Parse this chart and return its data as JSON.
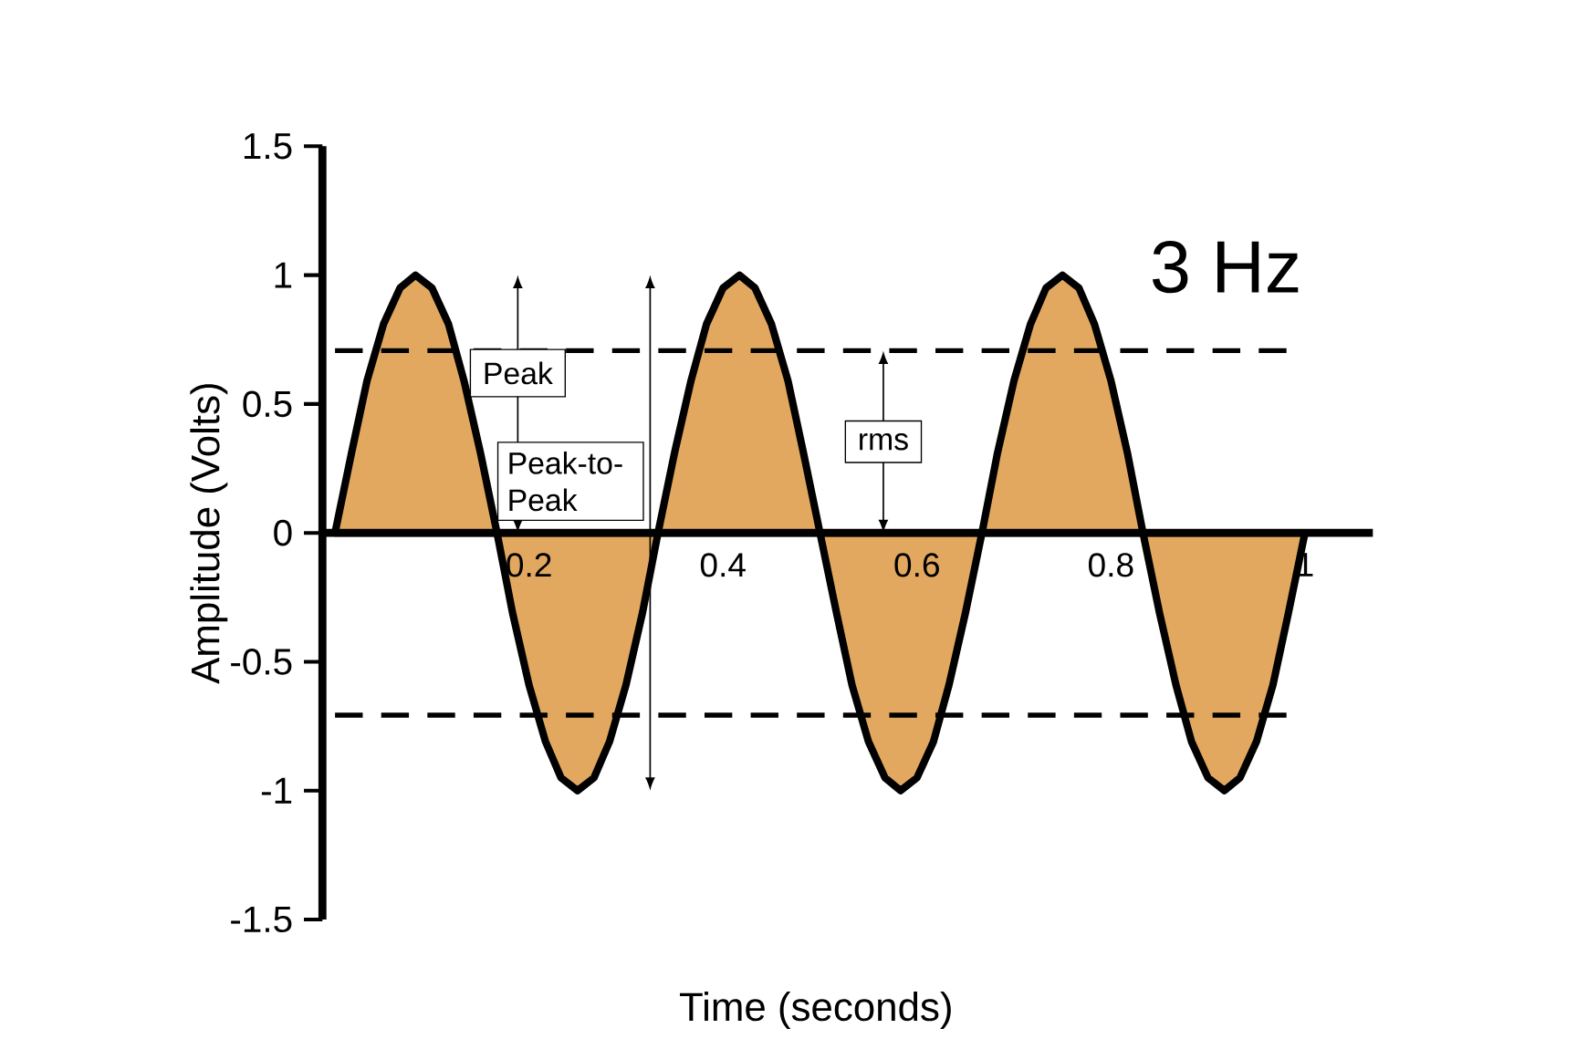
{
  "chart_data": {
    "type": "area",
    "title": "3 Hz",
    "xlabel": "Time (seconds)",
    "ylabel": "Amplitude (Volts)",
    "x": [
      0,
      0.017,
      0.033,
      0.05,
      0.067,
      0.083,
      0.1,
      0.117,
      0.133,
      0.15,
      0.167,
      0.183,
      0.2,
      0.217,
      0.233,
      0.25,
      0.267,
      0.283,
      0.3,
      0.317,
      0.333,
      0.35,
      0.367,
      0.383,
      0.4,
      0.417,
      0.433,
      0.45,
      0.467,
      0.483,
      0.5,
      0.517,
      0.533,
      0.55,
      0.567,
      0.583,
      0.6,
      0.617,
      0.633,
      0.65,
      0.667,
      0.683,
      0.7,
      0.717,
      0.733,
      0.75,
      0.767,
      0.783,
      0.8,
      0.817,
      0.833,
      0.85,
      0.867,
      0.883,
      0.9,
      0.917,
      0.933,
      0.95,
      0.967,
      0.983,
      1
    ],
    "series": [
      {
        "color": "#e3a860",
        "values": [
          0,
          0.31,
          0.59,
          0.81,
          0.95,
          1,
          0.95,
          0.81,
          0.59,
          0.31,
          0,
          -0.31,
          -0.59,
          -0.81,
          -0.95,
          -1,
          -0.95,
          -0.81,
          -0.59,
          -0.31,
          0,
          0.31,
          0.59,
          0.81,
          0.95,
          1,
          0.95,
          0.81,
          0.59,
          0.31,
          0,
          -0.31,
          -0.59,
          -0.81,
          -0.95,
          -1,
          -0.95,
          -0.81,
          -0.59,
          -0.31,
          0,
          0.31,
          0.59,
          0.81,
          0.95,
          1,
          0.95,
          0.81,
          0.59,
          0.31,
          0,
          -0.31,
          -0.59,
          -0.81,
          -0.95,
          -1,
          -0.95,
          -0.81,
          -0.59,
          -0.31,
          0
        ]
      }
    ],
    "xlim": [
      -0.013,
      1.07
    ],
    "ylim": [
      -1.5,
      1.5
    ],
    "xticks": [
      0.2,
      0.4,
      0.6,
      0.8,
      1
    ],
    "yticks": [
      -1.5,
      -1,
      -0.5,
      0,
      0.5,
      1,
      1.5
    ],
    "ref_lines": [
      {
        "axis": "y",
        "value": 0.707,
        "line_style": "dashed",
        "color": "#000000"
      },
      {
        "axis": "y",
        "value": -0.707,
        "line_style": "dashed",
        "color": "#000000"
      }
    ],
    "annotations": [
      "Peak",
      "Peak-to-Peak",
      "rms"
    ]
  }
}
